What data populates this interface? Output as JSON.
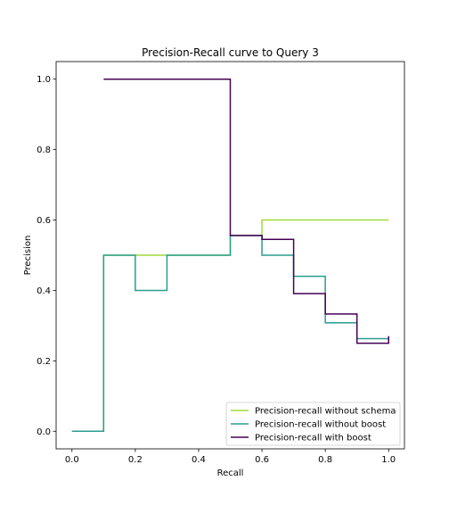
{
  "chart_data": {
    "type": "line",
    "step": "post",
    "title": "Precision-Recall curve to Query 3",
    "xlabel": "Recall",
    "ylabel": "Precision",
    "xlim": [
      -0.05,
      1.05
    ],
    "ylim": [
      -0.05,
      1.05
    ],
    "xticks": [
      0.0,
      0.2,
      0.4,
      0.6,
      0.8,
      1.0
    ],
    "yticks": [
      0.0,
      0.2,
      0.4,
      0.6,
      0.8,
      1.0
    ],
    "xtick_labels": [
      "0.0",
      "0.2",
      "0.4",
      "0.6",
      "0.8",
      "1.0"
    ],
    "ytick_labels": [
      "0.0",
      "0.2",
      "0.4",
      "0.6",
      "0.8",
      "1.0"
    ],
    "grid": false,
    "legend_position": "lower-right",
    "series": [
      {
        "name": "Precision-recall without schema",
        "color": "#a0da39",
        "x": [
          0.0,
          0.1,
          0.2,
          0.3,
          0.4,
          0.5,
          0.6,
          0.7,
          0.8,
          0.9,
          1.0
        ],
        "y": [
          0.0,
          0.5,
          0.5,
          0.5,
          0.5,
          0.556,
          0.6,
          0.6,
          0.6,
          0.6,
          0.6
        ]
      },
      {
        "name": "Precision-recall without boost",
        "color": "#2a9d8f",
        "x": [
          0.0,
          0.1,
          0.2,
          0.3,
          0.4,
          0.5,
          0.6,
          0.7,
          0.8,
          0.9,
          1.0
        ],
        "y": [
          0.0,
          0.5,
          0.4,
          0.5,
          0.5,
          0.556,
          0.5,
          0.44,
          0.308,
          0.263,
          0.27
        ]
      },
      {
        "name": "Precision-recall with boost",
        "color": "#440154",
        "x": [
          0.1,
          0.2,
          0.3,
          0.4,
          0.5,
          0.6,
          0.7,
          0.8,
          0.9,
          1.0
        ],
        "y": [
          1.0,
          1.0,
          1.0,
          1.0,
          0.556,
          0.545,
          0.391,
          0.333,
          0.25,
          0.27
        ]
      }
    ]
  }
}
